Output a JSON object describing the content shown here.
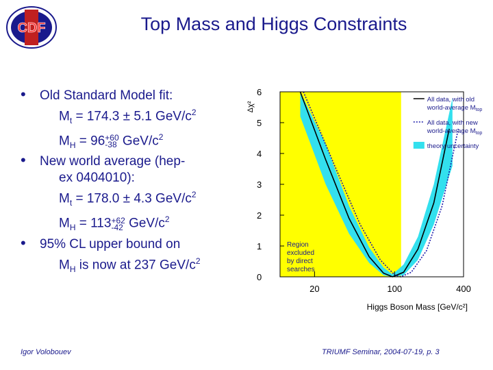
{
  "header": {
    "logo_text": "CDF",
    "title": "Top Mass and Higgs Constraints"
  },
  "bullets": [
    {
      "text": "Old Standard Model fit:",
      "lines": [
        {
          "pre": "M",
          "sub": "t",
          "post": " = 174.3 ± 5.1 GeV/c",
          "sup2": "2"
        },
        {
          "pre": "M",
          "sub": "H",
          "post": " = 96",
          "supA": "+60",
          "subA": "-38",
          "tail": " GeV/c",
          "sup2": "2"
        }
      ]
    },
    {
      "text": "New world average (hep-ex 0404010):",
      "text_line1": "New world average (hep-",
      "text_line2": "ex 0404010):",
      "lines": [
        {
          "pre": "M",
          "sub": "t",
          "post": " = 178.0 ± 4.3 GeV/c",
          "sup2": "2"
        },
        {
          "pre": "M",
          "sub": "H",
          "post": " = 113",
          "supA": "+62",
          "subA": "-42",
          "tail": " GeV/c",
          "sup2": "2"
        }
      ]
    },
    {
      "text_line1": "95% CL upper bound on",
      "text_line2_pre": "M",
      "text_line2_sub": "H",
      "text_line2_post": " is now at 237 GeV/c",
      "text_line2_sup": "2"
    }
  ],
  "chart_data": {
    "type": "line",
    "ylabel": "Δχ²",
    "xlabel": "Higgs Boson Mass [GeV/c²]",
    "xscale": "log",
    "xlim": [
      10,
      400
    ],
    "ylim": [
      0,
      6
    ],
    "xticks": [
      "20",
      "100",
      "400"
    ],
    "xtick_values": [
      20,
      100,
      400
    ],
    "yticks": [
      "0",
      "1",
      "2",
      "3",
      "4",
      "5",
      "6"
    ],
    "excluded_region": {
      "x_max": 114,
      "label_lines": [
        "Region",
        "excluded",
        "by direct",
        "searches"
      ],
      "color": "#ffff00"
    },
    "series": [
      {
        "name": "All data, with old world-average M_top",
        "style": "solid",
        "color": "#000000",
        "x": [
          15,
          25,
          40,
          60,
          80,
          96,
          120,
          160,
          220,
          300
        ],
        "y": [
          6.5,
          3.8,
          1.9,
          0.65,
          0.12,
          0.0,
          0.15,
          0.9,
          2.4,
          4.8
        ]
      },
      {
        "name": "All data, with new world-average M_top",
        "style": "dotted",
        "color": "#1a1aaa",
        "x": [
          16,
          30,
          50,
          75,
          100,
          113,
          140,
          190,
          260,
          360
        ],
        "y": [
          6.4,
          3.6,
          1.7,
          0.55,
          0.06,
          0.0,
          0.15,
          0.85,
          2.3,
          4.8
        ]
      }
    ],
    "band": {
      "name": "theory uncertainty",
      "color": "#33e0ee",
      "x": [
        15,
        25,
        40,
        60,
        80,
        96,
        120,
        160,
        220,
        320
      ],
      "lo": [
        5.2,
        3.0,
        1.4,
        0.45,
        0.05,
        0.0,
        0.05,
        0.55,
        1.7,
        3.6
      ],
      "hi": [
        6.8,
        4.3,
        2.3,
        0.95,
        0.3,
        0.08,
        0.4,
        1.3,
        3.0,
        5.8
      ]
    },
    "legend": [
      {
        "line1": "All data, with old",
        "line2": "world-average M",
        "sub": "top"
      },
      {
        "line1": "All data, with new",
        "line2": "world-average M",
        "sub": "top"
      },
      {
        "line1": "theory uncertainty"
      }
    ],
    "legend_position": "top-right",
    "colors": {
      "axis": "#000000",
      "text_blue": "#1a1a8c"
    }
  },
  "footer": {
    "author": "Igor Volobouev",
    "event": "TRIUMF Seminar, 2004-07-19, p. 3"
  }
}
